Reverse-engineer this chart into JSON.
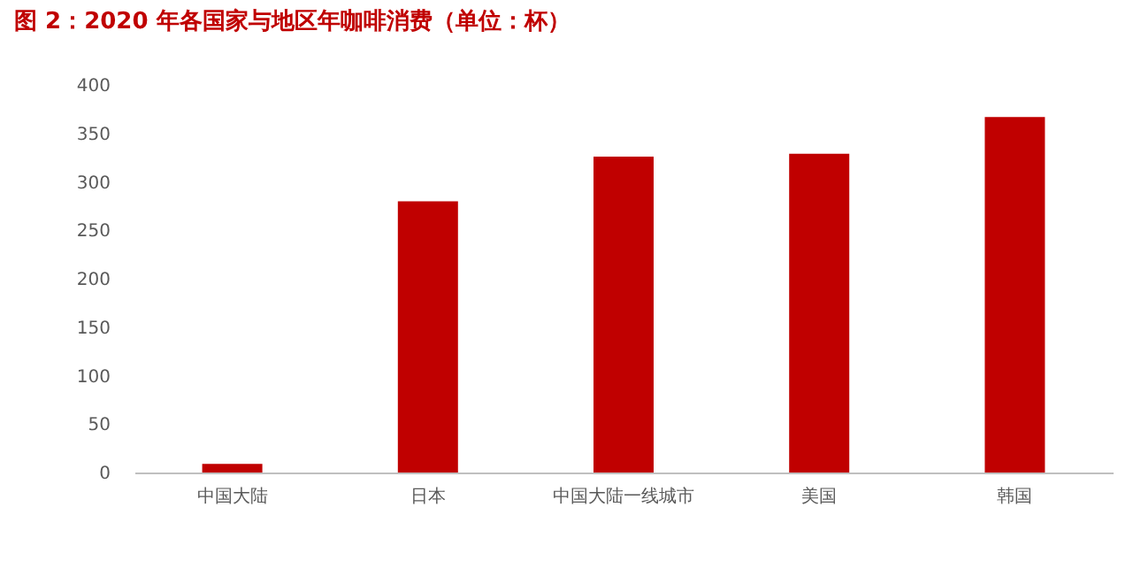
{
  "chart_data": {
    "type": "bar",
    "title": "图 2：2020 年各国家与地区年咖啡消费（单位：杯）",
    "categories": [
      "中国大陆",
      "日本",
      "中国大陆一线城市",
      "美国",
      "韩国"
    ],
    "values": [
      9,
      280,
      326,
      329,
      367
    ],
    "color": "#c00000",
    "ylim": [
      0,
      400
    ],
    "yticks": [
      0,
      50,
      100,
      150,
      200,
      250,
      300,
      350,
      400
    ],
    "grid": false
  }
}
